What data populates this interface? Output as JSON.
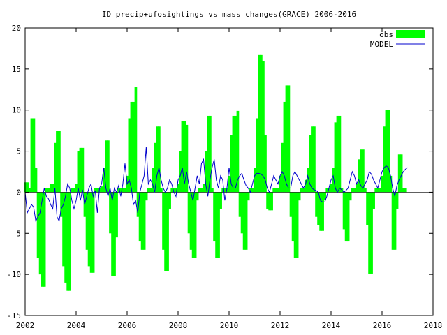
{
  "chart_data": {
    "type": "bar",
    "title": "ID precip+ufosightings vs mass changes(GRACE) 2006-2016",
    "xlim": [
      2002,
      2018
    ],
    "ylim": [
      -15,
      20
    ],
    "xticks": [
      "2002",
      "2004",
      "2006",
      "2008",
      "2010",
      "2012",
      "2014",
      "2016",
      "2018"
    ],
    "yticks": [
      "-15",
      "-10",
      "-5",
      "0",
      "5",
      "10",
      "15",
      "20"
    ],
    "grid": false,
    "legend": "top-right",
    "legend_entries": [
      "obs",
      "MODEL"
    ],
    "colors": {
      "obs": "#00ff00",
      "MODEL": "#0000cc",
      "zero_line": "#000000"
    },
    "series": [
      {
        "name": "obs",
        "style": "bars",
        "x": [
          2002.0,
          2002.083,
          2002.167,
          2002.25,
          2002.333,
          2002.417,
          2002.5,
          2002.583,
          2002.667,
          2002.75,
          2002.833,
          2002.917,
          2003.0,
          2003.083,
          2003.167,
          2003.25,
          2003.333,
          2003.417,
          2003.5,
          2003.583,
          2003.667,
          2003.75,
          2003.833,
          2003.917,
          2004.0,
          2004.083,
          2004.167,
          2004.25,
          2004.333,
          2004.417,
          2004.5,
          2004.583,
          2004.667,
          2004.75,
          2004.833,
          2004.917,
          2005.0,
          2005.083,
          2005.167,
          2005.25,
          2005.333,
          2005.417,
          2005.5,
          2005.583,
          2005.667,
          2005.75,
          2005.833,
          2005.917,
          2006.0,
          2006.083,
          2006.167,
          2006.25,
          2006.333,
          2006.417,
          2006.5,
          2006.583,
          2006.667,
          2006.75,
          2006.833,
          2006.917,
          2007.0,
          2007.083,
          2007.167,
          2007.25,
          2007.333,
          2007.417,
          2007.5,
          2007.583,
          2007.667,
          2007.75,
          2007.833,
          2007.917,
          2008.0,
          2008.083,
          2008.167,
          2008.25,
          2008.333,
          2008.417,
          2008.5,
          2008.583,
          2008.667,
          2008.75,
          2008.833,
          2008.917,
          2009.0,
          2009.083,
          2009.167,
          2009.25,
          2009.333,
          2009.417,
          2009.5,
          2009.583,
          2009.667,
          2009.75,
          2009.833,
          2009.917,
          2010.0,
          2010.083,
          2010.167,
          2010.25,
          2010.333,
          2010.417,
          2010.5,
          2010.583,
          2010.667,
          2010.75,
          2010.833,
          2010.917,
          2011.0,
          2011.083,
          2011.167,
          2011.25,
          2011.333,
          2011.417,
          2011.5,
          2011.583,
          2011.667,
          2011.75,
          2011.833,
          2011.917,
          2012.0,
          2012.083,
          2012.167,
          2012.25,
          2012.333,
          2012.417,
          2012.5,
          2012.583,
          2012.667,
          2012.75,
          2012.833,
          2012.917,
          2013.0,
          2013.083,
          2013.167,
          2013.25,
          2013.333,
          2013.417,
          2013.5,
          2013.583,
          2013.667,
          2013.75,
          2013.833,
          2013.917,
          2014.0,
          2014.083,
          2014.167,
          2014.25,
          2014.333,
          2014.417,
          2014.5,
          2014.583,
          2014.667,
          2014.75,
          2014.833,
          2014.917,
          2015.0,
          2015.083,
          2015.167,
          2015.25,
          2015.333,
          2015.417,
          2015.5,
          2015.583,
          2015.667,
          2015.75,
          2015.833,
          2015.917,
          2016.0,
          2016.083,
          2016.167,
          2016.25,
          2016.333,
          2016.417,
          2016.5,
          2016.583,
          2016.667,
          2016.75,
          2016.833,
          2016.917
        ],
        "values": [
          1.2,
          1.2,
          0.5,
          9.0,
          9.0,
          3.0,
          -8.0,
          -10.0,
          -11.5,
          -11.5,
          0.5,
          0.5,
          1.0,
          1.0,
          6.0,
          7.5,
          7.5,
          -3.0,
          -9.0,
          -11.0,
          -12.0,
          -12.0,
          0.5,
          0.5,
          1.0,
          5.0,
          5.4,
          5.4,
          -3.0,
          -7.0,
          -9.0,
          -9.8,
          -9.8,
          0.5,
          0.5,
          0.5,
          0.7,
          3.0,
          6.3,
          6.3,
          -5.0,
          -10.2,
          -10.2,
          -5.5,
          0.5,
          0.5,
          0.5,
          0.5,
          2.0,
          9.0,
          11.0,
          11.0,
          12.8,
          -3.0,
          -6.0,
          -7.0,
          -7.0,
          -1.0,
          0.5,
          0.5,
          3.0,
          6.0,
          8.0,
          8.0,
          0.5,
          -7.0,
          -9.6,
          -9.6,
          -2.0,
          0.5,
          0.5,
          0.5,
          1.0,
          5.0,
          8.7,
          8.7,
          8.2,
          -5.0,
          -7.0,
          -8.0,
          -8.0,
          -1.0,
          0.5,
          0.5,
          1.0,
          5.0,
          9.3,
          9.3,
          0.5,
          -6.0,
          -8.0,
          -8.0,
          -2.0,
          0.5,
          0.5,
          0.5,
          2.0,
          7.0,
          9.3,
          9.3,
          9.9,
          -3.0,
          -5.0,
          -7.0,
          -7.0,
          -1.0,
          0.5,
          0.5,
          3.0,
          9.0,
          16.7,
          16.7,
          16.0,
          7.0,
          -2.0,
          -2.2,
          -2.2,
          0.5,
          0.5,
          0.5,
          2.0,
          6.0,
          11.0,
          13.0,
          13.0,
          -3.0,
          -6.0,
          -8.0,
          -8.0,
          -1.0,
          0.5,
          0.5,
          1.5,
          3.0,
          7.0,
          8.0,
          8.0,
          -3.0,
          -4.0,
          -4.7,
          -4.7,
          -1.0,
          0.5,
          0.5,
          1.0,
          3.0,
          8.5,
          9.3,
          9.3,
          0.5,
          -4.5,
          -6.0,
          -6.0,
          -1.0,
          0.5,
          0.5,
          1.0,
          4.0,
          5.2,
          5.2,
          0.5,
          -4.0,
          -9.9,
          -9.9,
          -2.0,
          0.5,
          0.5,
          0.5,
          2.0,
          8.0,
          10.0,
          10.0,
          2.0,
          -7.0,
          -7.0,
          -2.0,
          4.6,
          4.6,
          0.5,
          0.5
        ]
      },
      {
        "name": "MODEL",
        "style": "line",
        "x": [
          2002.0,
          2002.083,
          2002.167,
          2002.25,
          2002.333,
          2002.417,
          2002.5,
          2002.583,
          2002.667,
          2002.75,
          2002.833,
          2002.917,
          2003.0,
          2003.083,
          2003.167,
          2003.25,
          2003.333,
          2003.417,
          2003.5,
          2003.583,
          2003.667,
          2003.75,
          2003.833,
          2003.917,
          2004.0,
          2004.083,
          2004.167,
          2004.25,
          2004.333,
          2004.417,
          2004.5,
          2004.583,
          2004.667,
          2004.75,
          2004.833,
          2004.917,
          2005.0,
          2005.083,
          2005.167,
          2005.25,
          2005.333,
          2005.417,
          2005.5,
          2005.583,
          2005.667,
          2005.75,
          2005.833,
          2005.917,
          2006.0,
          2006.083,
          2006.167,
          2006.25,
          2006.333,
          2006.417,
          2006.5,
          2006.583,
          2006.667,
          2006.75,
          2006.833,
          2006.917,
          2007.0,
          2007.083,
          2007.167,
          2007.25,
          2007.333,
          2007.417,
          2007.5,
          2007.583,
          2007.667,
          2007.75,
          2007.833,
          2007.917,
          2008.0,
          2008.083,
          2008.167,
          2008.25,
          2008.333,
          2008.417,
          2008.5,
          2008.583,
          2008.667,
          2008.75,
          2008.833,
          2008.917,
          2009.0,
          2009.083,
          2009.167,
          2009.25,
          2009.333,
          2009.417,
          2009.5,
          2009.583,
          2009.667,
          2009.75,
          2009.833,
          2009.917,
          2010.0,
          2010.083,
          2010.167,
          2010.25,
          2010.333,
          2010.417,
          2010.5,
          2010.583,
          2010.667,
          2010.75,
          2010.833,
          2010.917,
          2011.0,
          2011.083,
          2011.167,
          2011.25,
          2011.333,
          2011.417,
          2011.5,
          2011.583,
          2011.667,
          2011.75,
          2011.833,
          2011.917,
          2012.0,
          2012.083,
          2012.167,
          2012.25,
          2012.333,
          2012.417,
          2012.5,
          2012.583,
          2012.667,
          2012.75,
          2012.833,
          2012.917,
          2013.0,
          2013.083,
          2013.167,
          2013.25,
          2013.333,
          2013.417,
          2013.5,
          2013.583,
          2013.667,
          2013.75,
          2013.833,
          2013.917,
          2014.0,
          2014.083,
          2014.167,
          2014.25,
          2014.333,
          2014.417,
          2014.5,
          2014.583,
          2014.667,
          2014.75,
          2014.833,
          2014.917,
          2015.0,
          2015.083,
          2015.167,
          2015.25,
          2015.333,
          2015.417,
          2015.5,
          2015.583,
          2015.667,
          2015.75,
          2015.833,
          2015.917,
          2016.0,
          2016.083,
          2016.167,
          2016.25,
          2016.333,
          2016.417,
          2016.5,
          2016.583,
          2016.667,
          2016.75,
          2016.833,
          2016.917,
          2017.0
        ],
        "values": [
          0.0,
          -2.5,
          -2.0,
          -1.5,
          -1.8,
          -3.5,
          -3.0,
          -2.5,
          -1.0,
          0.5,
          -0.5,
          -0.8,
          -1.5,
          -2.0,
          0.5,
          -3.0,
          -3.5,
          -2.0,
          -1.5,
          -0.5,
          1.0,
          0.5,
          -1.0,
          -2.0,
          -1.0,
          0.5,
          -1.0,
          0.3,
          -1.5,
          -0.5,
          0.5,
          1.0,
          -0.5,
          0.2,
          -2.5,
          0.5,
          1.0,
          3.0,
          0.5,
          -0.5,
          0.5,
          -1.0,
          0.5,
          0.0,
          0.8,
          -0.5,
          1.0,
          3.5,
          1.0,
          1.5,
          0.5,
          -1.5,
          -1.0,
          -2.5,
          0.0,
          1.0,
          2.0,
          5.5,
          1.0,
          1.5,
          1.0,
          0.0,
          2.0,
          3.0,
          1.5,
          0.5,
          0.0,
          0.5,
          1.5,
          1.0,
          0.0,
          -0.5,
          1.5,
          2.0,
          3.0,
          1.0,
          2.5,
          1.0,
          0.0,
          -1.0,
          0.5,
          2.0,
          1.0,
          3.5,
          4.0,
          1.0,
          -0.5,
          1.5,
          3.0,
          4.0,
          1.5,
          0.5,
          2.0,
          1.5,
          -1.0,
          0.5,
          3.0,
          1.0,
          0.5,
          0.5,
          1.5,
          2.0,
          2.3,
          1.5,
          0.8,
          0.5,
          0.0,
          1.0,
          2.0,
          2.3,
          2.3,
          2.2,
          2.0,
          1.5,
          0.5,
          0.0,
          1.0,
          2.0,
          1.5,
          1.0,
          2.0,
          2.5,
          2.0,
          1.0,
          0.5,
          0.5,
          2.0,
          2.5,
          2.0,
          1.5,
          1.0,
          0.5,
          1.0,
          2.0,
          1.0,
          0.5,
          0.3,
          0.2,
          0.0,
          -1.0,
          -1.2,
          -1.2,
          -0.5,
          0.5,
          1.5,
          2.0,
          0.5,
          0.0,
          0.5,
          0.3,
          0.0,
          0.2,
          0.5,
          1.5,
          2.5,
          2.0,
          1.0,
          1.5,
          0.8,
          0.5,
          1.0,
          1.5,
          2.5,
          2.2,
          1.5,
          1.0,
          0.5,
          1.5,
          2.5,
          3.0,
          3.2,
          3.0,
          2.0,
          0.5,
          -0.5,
          0.8,
          1.5,
          2.0,
          2.5,
          2.8,
          3.0
        ]
      }
    ]
  }
}
